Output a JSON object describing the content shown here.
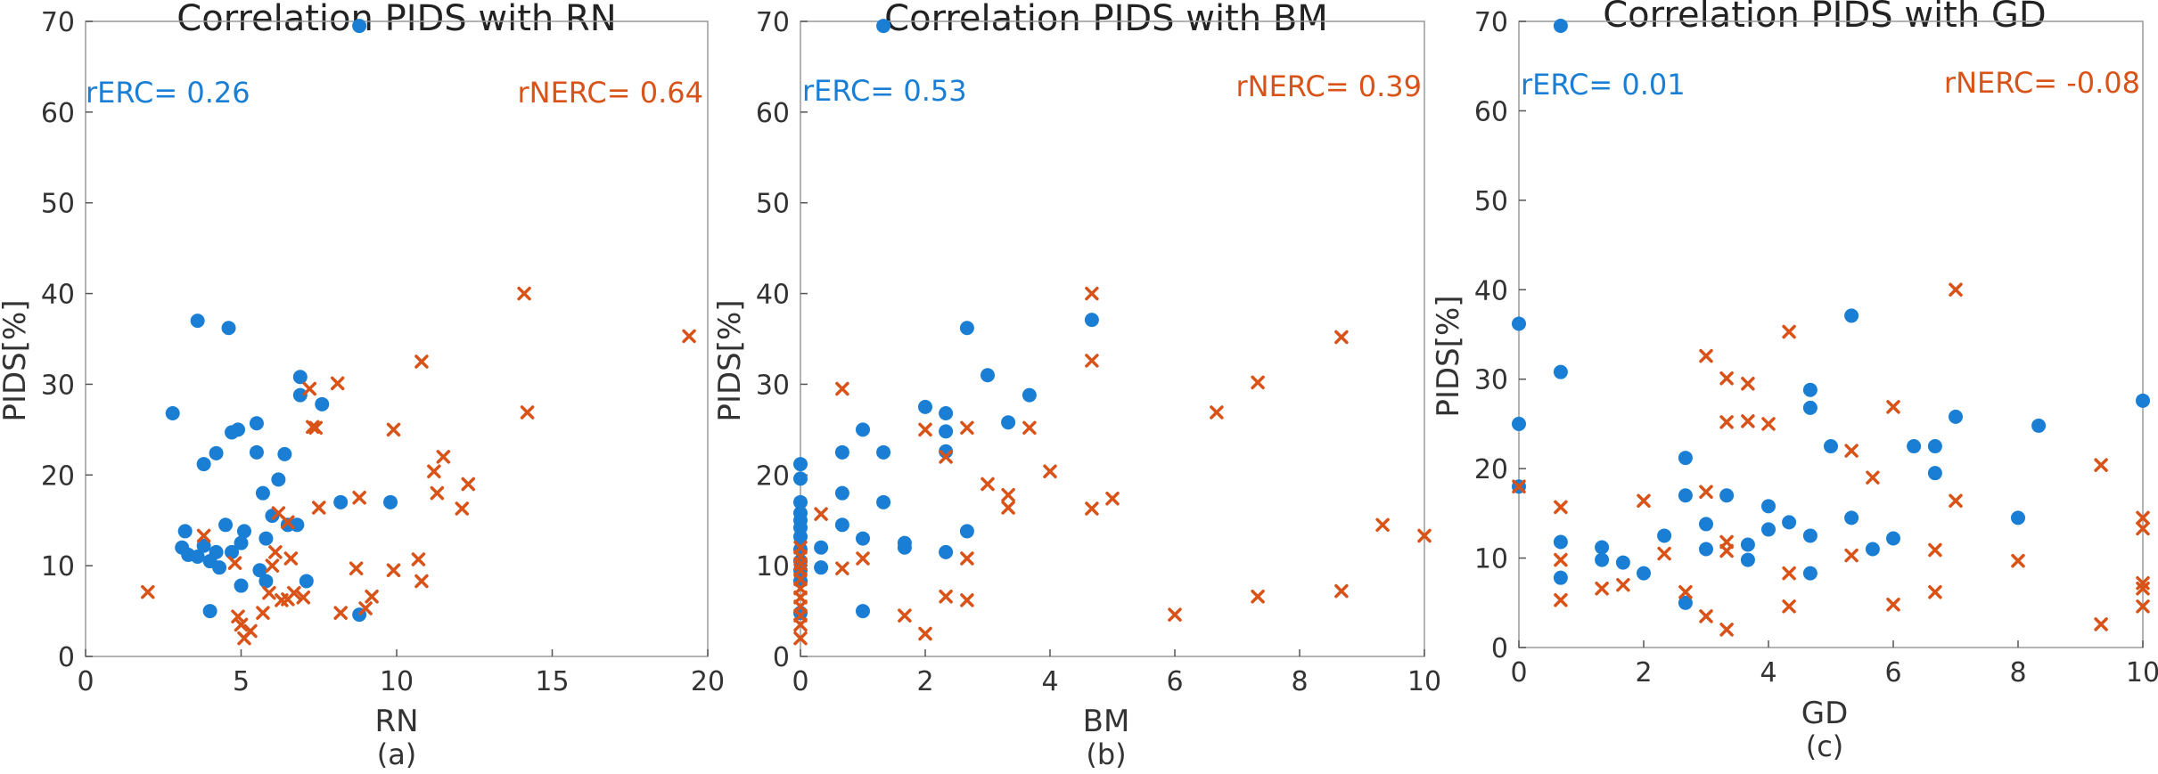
{
  "colors": {
    "erc": "#1a7fd4",
    "nerc": "#d95319"
  },
  "chart_data": [
    {
      "type": "scatter",
      "panel": "a",
      "title": "Correlation PIDS with RN",
      "xlabel": "RN",
      "ylabel": "PIDS[%]",
      "sublabel": "(a)",
      "xlim": [
        0,
        20
      ],
      "ylim": [
        0,
        70
      ],
      "xticks": [
        0,
        5,
        10,
        15,
        20
      ],
      "yticks": [
        0,
        10,
        20,
        30,
        40,
        50,
        60,
        70
      ],
      "stats": {
        "erc": "rERC= 0.26",
        "nerc": "rNERC= 0.64"
      },
      "series": [
        {
          "key": "erc",
          "marker": "circle",
          "points": [
            [
              2.8,
              26.8
            ],
            [
              3.2,
              13.8
            ],
            [
              3.1,
              12
            ],
            [
              3.3,
              11.2
            ],
            [
              3.6,
              11
            ],
            [
              3.6,
              37
            ],
            [
              3.8,
              21.2
            ],
            [
              3.8,
              12.2
            ],
            [
              4.0,
              10.5
            ],
            [
              4.0,
              5
            ],
            [
              4.2,
              22.4
            ],
            [
              4.2,
              11.5
            ],
            [
              4.3,
              9.8
            ],
            [
              4.5,
              14.5
            ],
            [
              4.6,
              36.2
            ],
            [
              4.7,
              24.7
            ],
            [
              4.7,
              11.5
            ],
            [
              4.9,
              25
            ],
            [
              5.0,
              12.5
            ],
            [
              5.0,
              7.8
            ],
            [
              5.1,
              13.8
            ],
            [
              5.5,
              25.7
            ],
            [
              5.5,
              22.5
            ],
            [
              5.6,
              9.5
            ],
            [
              5.7,
              18
            ],
            [
              5.8,
              13
            ],
            [
              5.8,
              8.3
            ],
            [
              6.0,
              15.5
            ],
            [
              6.2,
              19.5
            ],
            [
              6.4,
              22.3
            ],
            [
              6.5,
              14.5
            ],
            [
              6.8,
              14.5
            ],
            [
              6.9,
              30.8
            ],
            [
              6.9,
              28.8
            ],
            [
              7.1,
              8.3
            ],
            [
              7.6,
              27.8
            ],
            [
              8.2,
              17
            ],
            [
              8.8,
              4.6
            ],
            [
              8.8,
              69.5
            ],
            [
              9.8,
              17
            ]
          ]
        },
        {
          "key": "nerc",
          "marker": "x",
          "points": [
            [
              2.0,
              7.1
            ],
            [
              3.8,
              13.3
            ],
            [
              4.8,
              10.3
            ],
            [
              4.9,
              4.4
            ],
            [
              5.0,
              3.5
            ],
            [
              5.1,
              2
            ],
            [
              5.3,
              2.8
            ],
            [
              5.7,
              4.8
            ],
            [
              5.9,
              7
            ],
            [
              6.0,
              10
            ],
            [
              6.1,
              11.5
            ],
            [
              6.2,
              15.8
            ],
            [
              6.3,
              6.2
            ],
            [
              6.5,
              14.8
            ],
            [
              6.5,
              6.3
            ],
            [
              6.6,
              10.8
            ],
            [
              6.7,
              7
            ],
            [
              7.0,
              6.5
            ],
            [
              7.2,
              29.5
            ],
            [
              7.3,
              25.3
            ],
            [
              7.4,
              25.2
            ],
            [
              7.5,
              16.4
            ],
            [
              8.1,
              30.1
            ],
            [
              8.2,
              4.8
            ],
            [
              8.7,
              9.7
            ],
            [
              8.8,
              17.5
            ],
            [
              9.0,
              5.3
            ],
            [
              9.2,
              6.6
            ],
            [
              9.9,
              25
            ],
            [
              9.9,
              9.5
            ],
            [
              10.7,
              10.7
            ],
            [
              10.8,
              8.3
            ],
            [
              10.8,
              32.5
            ],
            [
              11.2,
              20.4
            ],
            [
              11.3,
              18
            ],
            [
              11.5,
              22
            ],
            [
              12.1,
              16.3
            ],
            [
              12.3,
              19
            ],
            [
              14.1,
              40
            ],
            [
              14.2,
              26.9
            ],
            [
              19.4,
              35.3
            ]
          ]
        }
      ]
    },
    {
      "type": "scatter",
      "panel": "b",
      "title": "Correlation PIDS with BM",
      "xlabel": "BM",
      "ylabel": "PIDS[%]",
      "sublabel": "(b)",
      "xlim": [
        0,
        10
      ],
      "ylim": [
        0,
        70
      ],
      "xticks": [
        0,
        2,
        4,
        6,
        8,
        10
      ],
      "yticks": [
        0,
        10,
        20,
        30,
        40,
        50,
        60,
        70
      ],
      "stats": {
        "erc": "rERC= 0.53",
        "nerc": "rNERC= 0.39"
      },
      "series": [
        {
          "key": "erc",
          "marker": "circle",
          "points": [
            [
              0,
              21.2
            ],
            [
              0,
              19.6
            ],
            [
              0,
              17
            ],
            [
              0,
              15.8
            ],
            [
              0,
              15
            ],
            [
              0,
              14.2
            ],
            [
              0,
              13.2
            ],
            [
              0,
              11.8
            ],
            [
              0,
              10.5
            ],
            [
              0,
              9.5
            ],
            [
              0,
              8.3
            ],
            [
              0,
              4.8
            ],
            [
              0.33,
              12
            ],
            [
              0.33,
              9.8
            ],
            [
              0.67,
              22.5
            ],
            [
              0.67,
              18
            ],
            [
              0.67,
              14.5
            ],
            [
              1,
              25
            ],
            [
              1,
              13
            ],
            [
              1,
              5
            ],
            [
              1.33,
              22.5
            ],
            [
              1.33,
              17
            ],
            [
              1.33,
              69.5
            ],
            [
              1.67,
              12.5
            ],
            [
              1.67,
              12
            ],
            [
              2,
              27.5
            ],
            [
              2.33,
              26.8
            ],
            [
              2.33,
              24.8
            ],
            [
              2.33,
              22.6
            ],
            [
              2.33,
              11.5
            ],
            [
              2.67,
              36.2
            ],
            [
              2.67,
              13.8
            ],
            [
              3,
              31
            ],
            [
              3.33,
              25.8
            ],
            [
              3.67,
              28.8
            ],
            [
              4.67,
              37.1
            ]
          ]
        },
        {
          "key": "nerc",
          "marker": "x",
          "points": [
            [
              0,
              2
            ],
            [
              0,
              3.5
            ],
            [
              0,
              4.5
            ],
            [
              0,
              5.5
            ],
            [
              0,
              6.5
            ],
            [
              0,
              7.5
            ],
            [
              0,
              8.5
            ],
            [
              0,
              9.5
            ],
            [
              0,
              10.2
            ],
            [
              0,
              11
            ],
            [
              0,
              12
            ],
            [
              0.33,
              15.7
            ],
            [
              0.67,
              29.5
            ],
            [
              0.67,
              9.7
            ],
            [
              1,
              10.8
            ],
            [
              1.67,
              4.5
            ],
            [
              2,
              25
            ],
            [
              2,
              2.5
            ],
            [
              2.33,
              22
            ],
            [
              2.33,
              6.6
            ],
            [
              2.67,
              25.2
            ],
            [
              2.67,
              10.8
            ],
            [
              2.67,
              6.2
            ],
            [
              3,
              19
            ],
            [
              3.33,
              17.8
            ],
            [
              3.33,
              16.4
            ],
            [
              3.67,
              25.2
            ],
            [
              4,
              20.4
            ],
            [
              4.67,
              40
            ],
            [
              4.67,
              32.6
            ],
            [
              4.67,
              16.3
            ],
            [
              5,
              17.4
            ],
            [
              6,
              4.6
            ],
            [
              6.67,
              26.9
            ],
            [
              7.33,
              30.2
            ],
            [
              7.33,
              6.6
            ],
            [
              8.67,
              35.2
            ],
            [
              8.67,
              7.2
            ],
            [
              9.33,
              14.5
            ],
            [
              10,
              13.3
            ]
          ]
        }
      ]
    },
    {
      "type": "scatter",
      "panel": "c",
      "title": "Correlation PIDS with GD",
      "xlabel": "GD",
      "ylabel": "PIDS[%]",
      "sublabel": "(c)",
      "xlim": [
        0,
        10
      ],
      "ylim": [
        0,
        70
      ],
      "xticks": [
        0,
        2,
        4,
        6,
        8,
        10
      ],
      "yticks": [
        0,
        10,
        20,
        30,
        40,
        50,
        60,
        70
      ],
      "stats": {
        "erc": "rERC= 0.01",
        "nerc": "rNERC= -0.08"
      },
      "series": [
        {
          "key": "erc",
          "marker": "circle",
          "points": [
            [
              0,
              36.2
            ],
            [
              0,
              25
            ],
            [
              0,
              18
            ],
            [
              0.67,
              69.5
            ],
            [
              0.67,
              30.8
            ],
            [
              0.67,
              11.8
            ],
            [
              0.67,
              7.8
            ],
            [
              1.33,
              11.2
            ],
            [
              1.33,
              9.8
            ],
            [
              1.67,
              9.5
            ],
            [
              2,
              8.3
            ],
            [
              2.33,
              12.5
            ],
            [
              2.67,
              21.2
            ],
            [
              2.67,
              17
            ],
            [
              2.67,
              5
            ],
            [
              3,
              13.8
            ],
            [
              3,
              11
            ],
            [
              3.33,
              17
            ],
            [
              3.67,
              11.5
            ],
            [
              3.67,
              9.8
            ],
            [
              4,
              15.8
            ],
            [
              4,
              13.2
            ],
            [
              4.33,
              14
            ],
            [
              4.67,
              28.8
            ],
            [
              4.67,
              26.8
            ],
            [
              4.67,
              12.5
            ],
            [
              4.67,
              8.3
            ],
            [
              5,
              22.5
            ],
            [
              5.33,
              37.1
            ],
            [
              5.33,
              14.5
            ],
            [
              5.67,
              11
            ],
            [
              6,
              12.2
            ],
            [
              6.33,
              22.5
            ],
            [
              6.67,
              22.5
            ],
            [
              6.67,
              19.5
            ],
            [
              7,
              25.8
            ],
            [
              8,
              14.5
            ],
            [
              8.33,
              24.8
            ],
            [
              10,
              27.6
            ]
          ]
        },
        {
          "key": "nerc",
          "marker": "x",
          "points": [
            [
              0,
              18
            ],
            [
              0.67,
              15.7
            ],
            [
              0.67,
              9.8
            ],
            [
              0.67,
              5.3
            ],
            [
              1.33,
              6.6
            ],
            [
              1.67,
              7
            ],
            [
              2,
              16.4
            ],
            [
              2.33,
              10.5
            ],
            [
              2.67,
              6.2
            ],
            [
              3,
              32.6
            ],
            [
              3,
              17.4
            ],
            [
              3,
              3.5
            ],
            [
              3.33,
              30.1
            ],
            [
              3.33,
              25.2
            ],
            [
              3.33,
              11.8
            ],
            [
              3.33,
              10.8
            ],
            [
              3.33,
              2
            ],
            [
              3.67,
              29.5
            ],
            [
              3.67,
              25.3
            ],
            [
              4,
              25
            ],
            [
              4.33,
              35.3
            ],
            [
              4.33,
              8.3
            ],
            [
              4.33,
              4.6
            ],
            [
              5.33,
              22
            ],
            [
              5.33,
              10.3
            ],
            [
              5.67,
              19
            ],
            [
              6,
              26.9
            ],
            [
              6,
              4.8
            ],
            [
              6.67,
              10.9
            ],
            [
              6.67,
              6.2
            ],
            [
              7,
              40
            ],
            [
              7,
              16.4
            ],
            [
              8,
              9.7
            ],
            [
              9.33,
              20.4
            ],
            [
              9.33,
              2.6
            ],
            [
              10,
              14.5
            ],
            [
              10,
              13.3
            ],
            [
              10,
              7.2
            ],
            [
              10,
              6.6
            ],
            [
              10,
              4.6
            ]
          ]
        }
      ]
    }
  ]
}
